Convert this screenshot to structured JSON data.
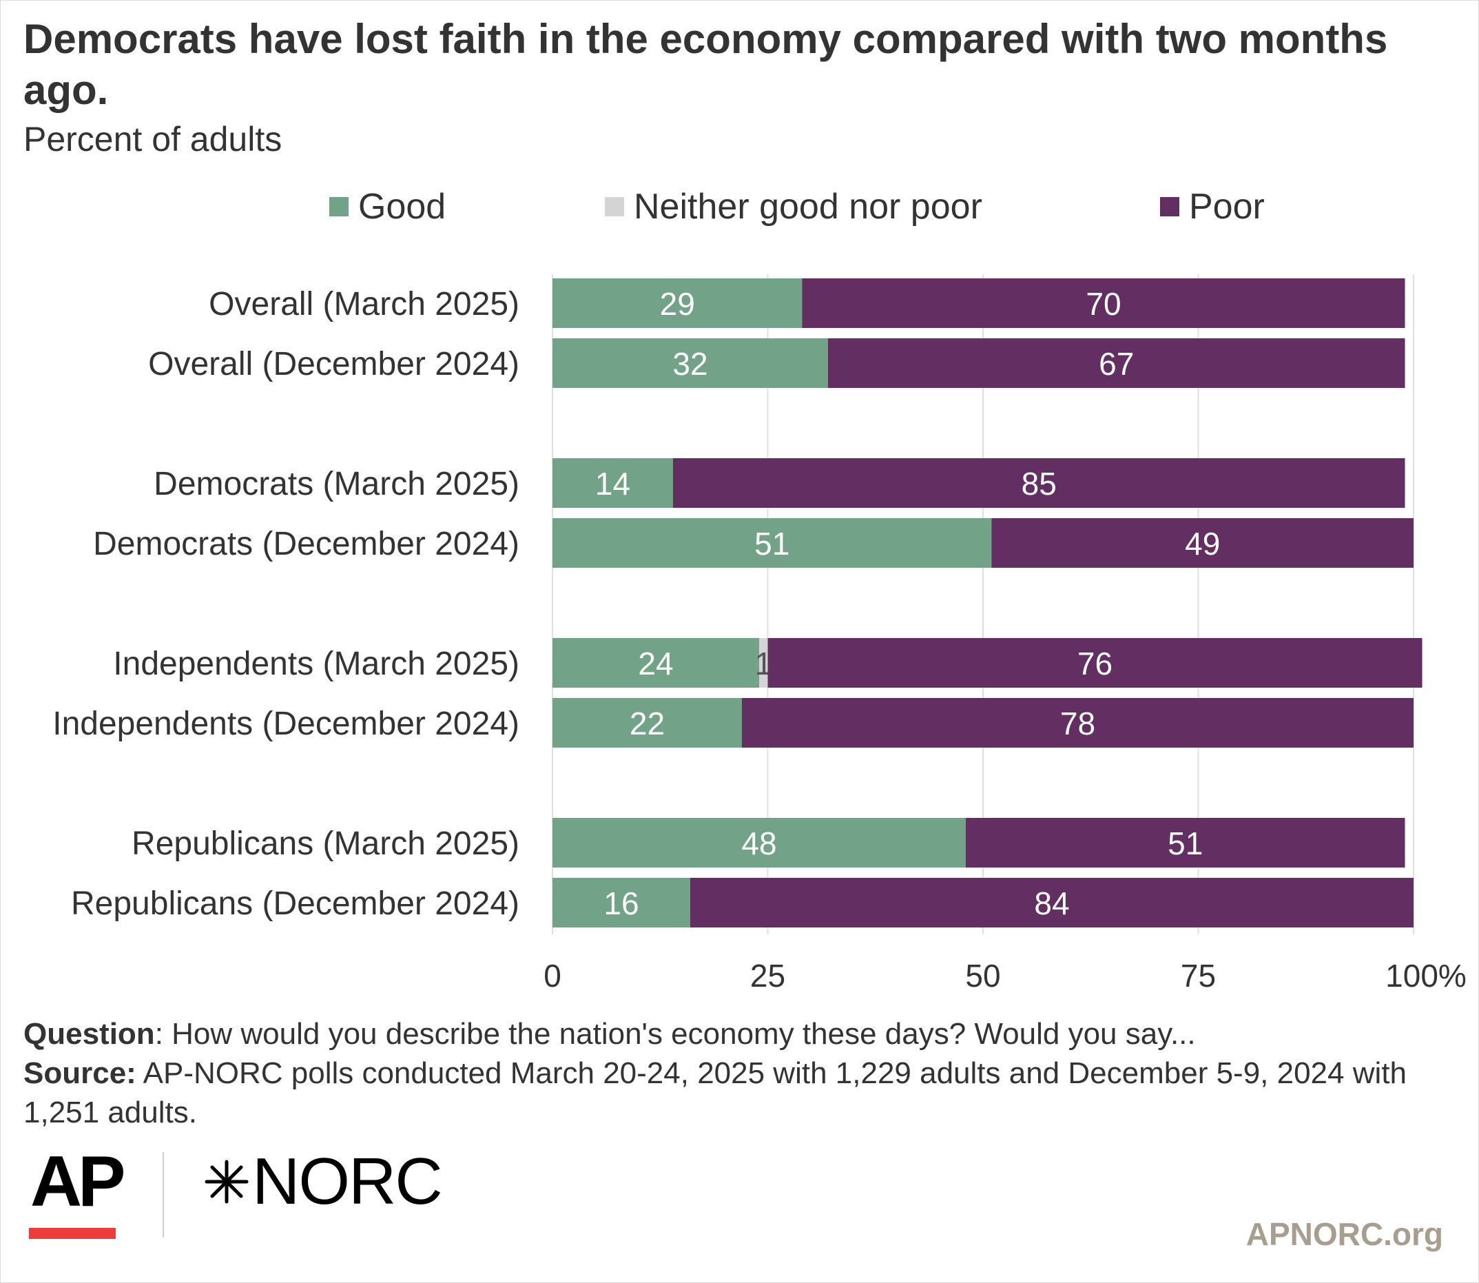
{
  "colors": {
    "good": "#72a388",
    "neither": "#d4d4d4",
    "poor": "#632e61",
    "grid": "#e0e0e0",
    "ap_red": "#ef3b39",
    "site": "#a79e8f"
  },
  "chart_data": {
    "type": "bar",
    "orientation": "horizontal",
    "stacked": true,
    "title": "Democrats have lost faith in the economy compared with two months ago.",
    "subtitle": "Percent of adults",
    "categories": [
      "Overall (March 2025)",
      "Overall (December 2024)",
      "Democrats (March 2025)",
      "Democrats (December 2024)",
      "Independents (March 2025)",
      "Independents (December 2024)",
      "Republicans (March 2025)",
      "Republicans (December 2024)"
    ],
    "series": [
      {
        "name": "Good",
        "values": [
          29,
          32,
          14,
          51,
          24,
          22,
          48,
          16
        ],
        "labels": [
          "29",
          "32",
          "14",
          "51",
          "24",
          "22",
          "48",
          "16"
        ]
      },
      {
        "name": "Neither good nor poor",
        "values": [
          0,
          0,
          0,
          0,
          1,
          0,
          0,
          0
        ],
        "labels": [
          "",
          "",
          "",
          "",
          "1",
          "",
          "",
          ""
        ]
      },
      {
        "name": "Poor",
        "values": [
          70,
          67,
          85,
          49,
          76,
          78,
          51,
          84
        ],
        "labels": [
          "70",
          "67",
          "85",
          "49",
          "76",
          "78",
          "51",
          "84"
        ]
      }
    ],
    "xlim": [
      0,
      100
    ],
    "xticks": [
      "0",
      "25",
      "50",
      "75",
      "100%"
    ],
    "grid": true,
    "legend_position": "top"
  },
  "footnote": {
    "question_label": "Question",
    "question_text": ": How would you describe the nation's economy these days? Would you say...",
    "source_label": "Source:",
    "source_text": " AP-NORC polls conducted March 20-24, 2025 with 1,229 adults and December 5-9, 2024 with 1,251 adults."
  },
  "branding": {
    "ap_logo_text": "AP",
    "norc_logo_text": "NORC",
    "site": "APNORC.org"
  }
}
